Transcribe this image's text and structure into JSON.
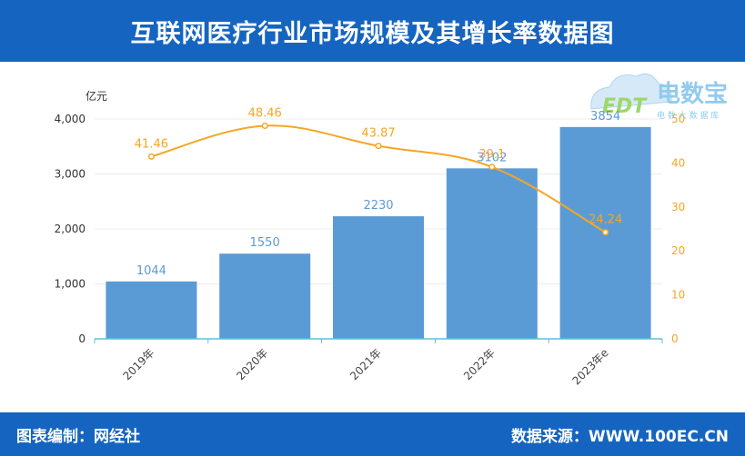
{
  "header": {
    "title": "互联网医疗行业市场规模及其增长率数据图"
  },
  "footer": {
    "left": "图表编制：网经社",
    "right": "数据来源：WWW.100EC.CN"
  },
  "watermark": {
    "logo_text": "电数宝",
    "sub_text": "电 数 大 数 据 库",
    "mark": "EDT"
  },
  "colors": {
    "header_bg": "#1565c0",
    "bar": "#5b9bd5",
    "bar_label": "#5b9bd5",
    "line": "#f5a623",
    "axis_left": "#333333",
    "axis_right": "#f5a623",
    "baseline": "#5bc0de"
  },
  "chart_data": {
    "type": "bar",
    "categories": [
      "2019年",
      "2020年",
      "2021年",
      "2022年",
      "2023年e"
    ],
    "ylabel": "亿元",
    "ylim": [
      0,
      4000
    ],
    "yticks": [
      "0",
      "1,000",
      "2,000",
      "3,000",
      "4,000"
    ],
    "y2lim": [
      0,
      50
    ],
    "y2ticks": [
      "0",
      "10",
      "20",
      "30",
      "40",
      "50"
    ],
    "grid": true,
    "series": [
      {
        "type": "bar",
        "values": [
          1044,
          1550,
          2230,
          3102,
          3854
        ],
        "labels": [
          "1044",
          "1550",
          "2230",
          "3102",
          "3854"
        ]
      },
      {
        "type": "line",
        "axis": "right",
        "values": [
          41.46,
          48.46,
          43.87,
          39.1,
          24.24
        ],
        "labels": [
          "41.46",
          "48.46",
          "43.87",
          "39.1",
          "24.24"
        ]
      }
    ]
  }
}
